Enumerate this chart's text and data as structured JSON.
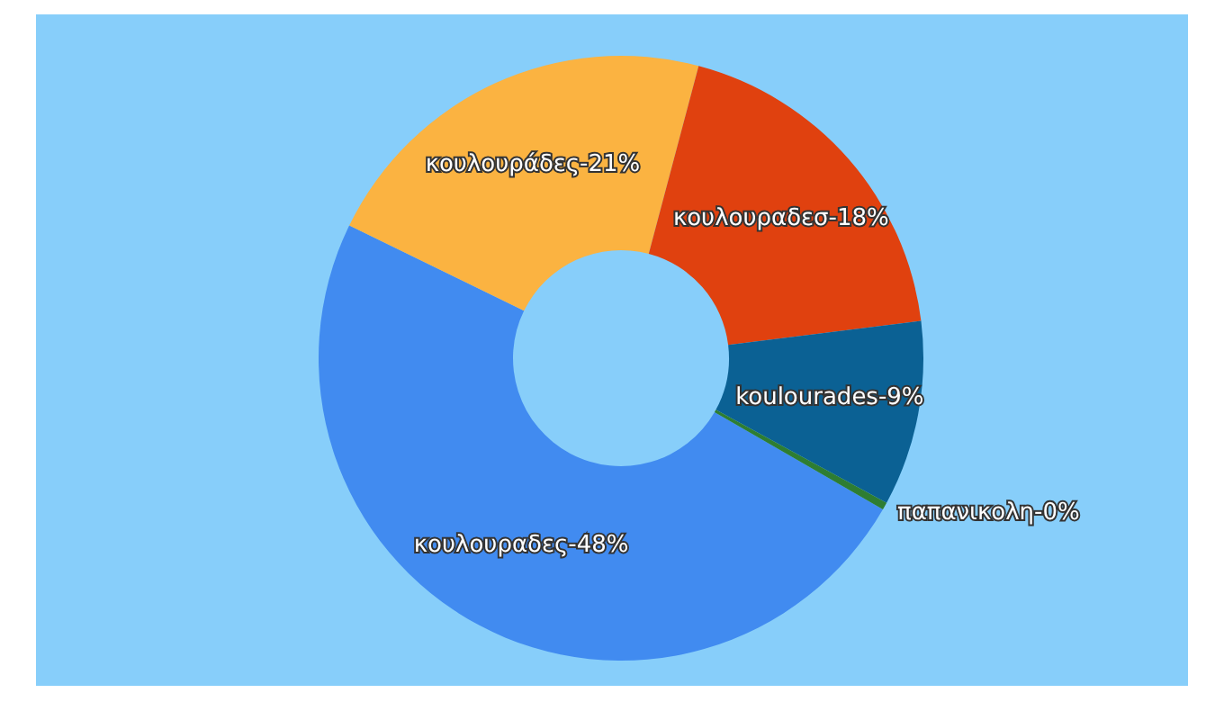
{
  "chart_data": {
    "type": "donut",
    "categories": [
      "κουλουραδες-48%",
      "κουλουράδες-21%",
      "κουλουραδεσ-18%",
      "koulourades-9%",
      "παπανικολη-0%"
    ],
    "values": [
      48.9,
      21.9,
      18.9,
      9.9,
      0.4
    ],
    "colors": [
      "#418bf0",
      "#fbb341",
      "#e0410f",
      "#0b6194",
      "#2e7d32"
    ],
    "legend": false
  }
}
